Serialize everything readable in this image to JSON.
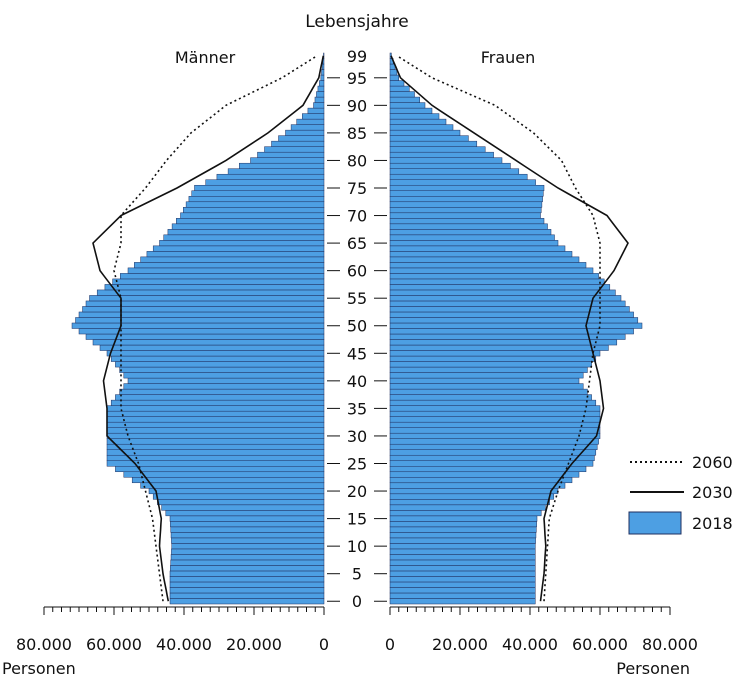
{
  "chart_data": {
    "type": "bar",
    "orientation": "horizontal-population-pyramid",
    "title": "Lebensjahre",
    "male_label": "Männer",
    "female_label": "Frauen",
    "x_unit_label": "Personen",
    "x_ticks_left": [
      "80.000",
      "60.000",
      "40.000",
      "20.000",
      "0"
    ],
    "x_ticks_right": [
      "0",
      "20.000",
      "40.000",
      "60.000",
      "80.000"
    ],
    "xlim": [
      0,
      80000
    ],
    "ylim": [
      0,
      99
    ],
    "age_ticks": [
      "0",
      "5",
      "10",
      "15",
      "20",
      "25",
      "30",
      "35",
      "40",
      "45",
      "50",
      "55",
      "60",
      "65",
      "70",
      "75",
      "80",
      "85",
      "90",
      "95",
      "99"
    ],
    "legend": {
      "position": "bottom-right",
      "items": [
        {
          "label": "2060",
          "style": "dotted"
        },
        {
          "label": "2030",
          "style": "solid"
        },
        {
          "label": "2018",
          "style": "bar",
          "color": "#4d9fe3"
        }
      ]
    },
    "colors": {
      "bar": "#4d9fe3",
      "bar_edge": "#1f2f5f",
      "line": "#111111"
    },
    "series": [
      {
        "name": "2018",
        "sex": "Männer",
        "ages": [
          0,
          5,
          10,
          15,
          20,
          25,
          30,
          35,
          40,
          45,
          50,
          55,
          60,
          65,
          70,
          75,
          80,
          85,
          90,
          95,
          99
        ],
        "values": [
          44000,
          44000,
          43500,
          44000,
          50000,
          62000,
          62000,
          62000,
          56000,
          62000,
          72000,
          67000,
          56000,
          47000,
          41000,
          37000,
          21000,
          11000,
          3000,
          900,
          150
        ]
      },
      {
        "name": "2018",
        "sex": "Frauen",
        "ages": [
          0,
          5,
          10,
          15,
          20,
          25,
          30,
          35,
          40,
          45,
          50,
          55,
          60,
          65,
          70,
          75,
          80,
          85,
          90,
          95,
          99
        ],
        "values": [
          41500,
          41500,
          41500,
          42000,
          48000,
          58000,
          60000,
          60000,
          54000,
          60000,
          72000,
          66000,
          58000,
          48000,
          43000,
          44000,
          32000,
          20000,
          10000,
          2500,
          400
        ]
      },
      {
        "name": "2030",
        "sex": "Männer",
        "ages": [
          0,
          5,
          10,
          15,
          20,
          25,
          30,
          35,
          40,
          45,
          50,
          55,
          60,
          65,
          70,
          75,
          80,
          85,
          90,
          95,
          99
        ],
        "values": [
          44500,
          46000,
          47000,
          46500,
          48000,
          54000,
          62000,
          62000,
          63000,
          61000,
          58000,
          58000,
          64000,
          66000,
          58000,
          42000,
          28000,
          16000,
          6000,
          1500,
          200
        ]
      },
      {
        "name": "2030",
        "sex": "Frauen",
        "ages": [
          0,
          5,
          10,
          15,
          20,
          25,
          30,
          35,
          40,
          45,
          50,
          55,
          60,
          65,
          70,
          75,
          80,
          85,
          90,
          95,
          99
        ],
        "values": [
          43000,
          44000,
          44500,
          44000,
          46000,
          52000,
          59000,
          61000,
          60000,
          58000,
          56000,
          58000,
          64000,
          68000,
          62000,
          48000,
          36000,
          24000,
          12000,
          3000,
          300
        ]
      },
      {
        "name": "2060",
        "sex": "Männer",
        "ages": [
          0,
          5,
          10,
          15,
          20,
          25,
          30,
          35,
          40,
          45,
          50,
          55,
          60,
          65,
          70,
          75,
          80,
          85,
          90,
          95,
          99
        ],
        "values": [
          46000,
          47000,
          48000,
          49000,
          51000,
          53000,
          56000,
          58000,
          58000,
          58000,
          58000,
          58000,
          60000,
          58000,
          58000,
          51000,
          45000,
          38000,
          28000,
          12000,
          2000
        ]
      },
      {
        "name": "2060",
        "sex": "Frauen",
        "ages": [
          0,
          5,
          10,
          15,
          20,
          25,
          30,
          35,
          40,
          45,
          50,
          55,
          60,
          65,
          70,
          75,
          80,
          85,
          90,
          95,
          99
        ],
        "values": [
          44000,
          44500,
          45000,
          45500,
          48000,
          51000,
          54000,
          56000,
          57000,
          58000,
          60000,
          60000,
          60000,
          60000,
          58000,
          53000,
          49000,
          41000,
          30000,
          12000,
          2000
        ]
      }
    ]
  }
}
